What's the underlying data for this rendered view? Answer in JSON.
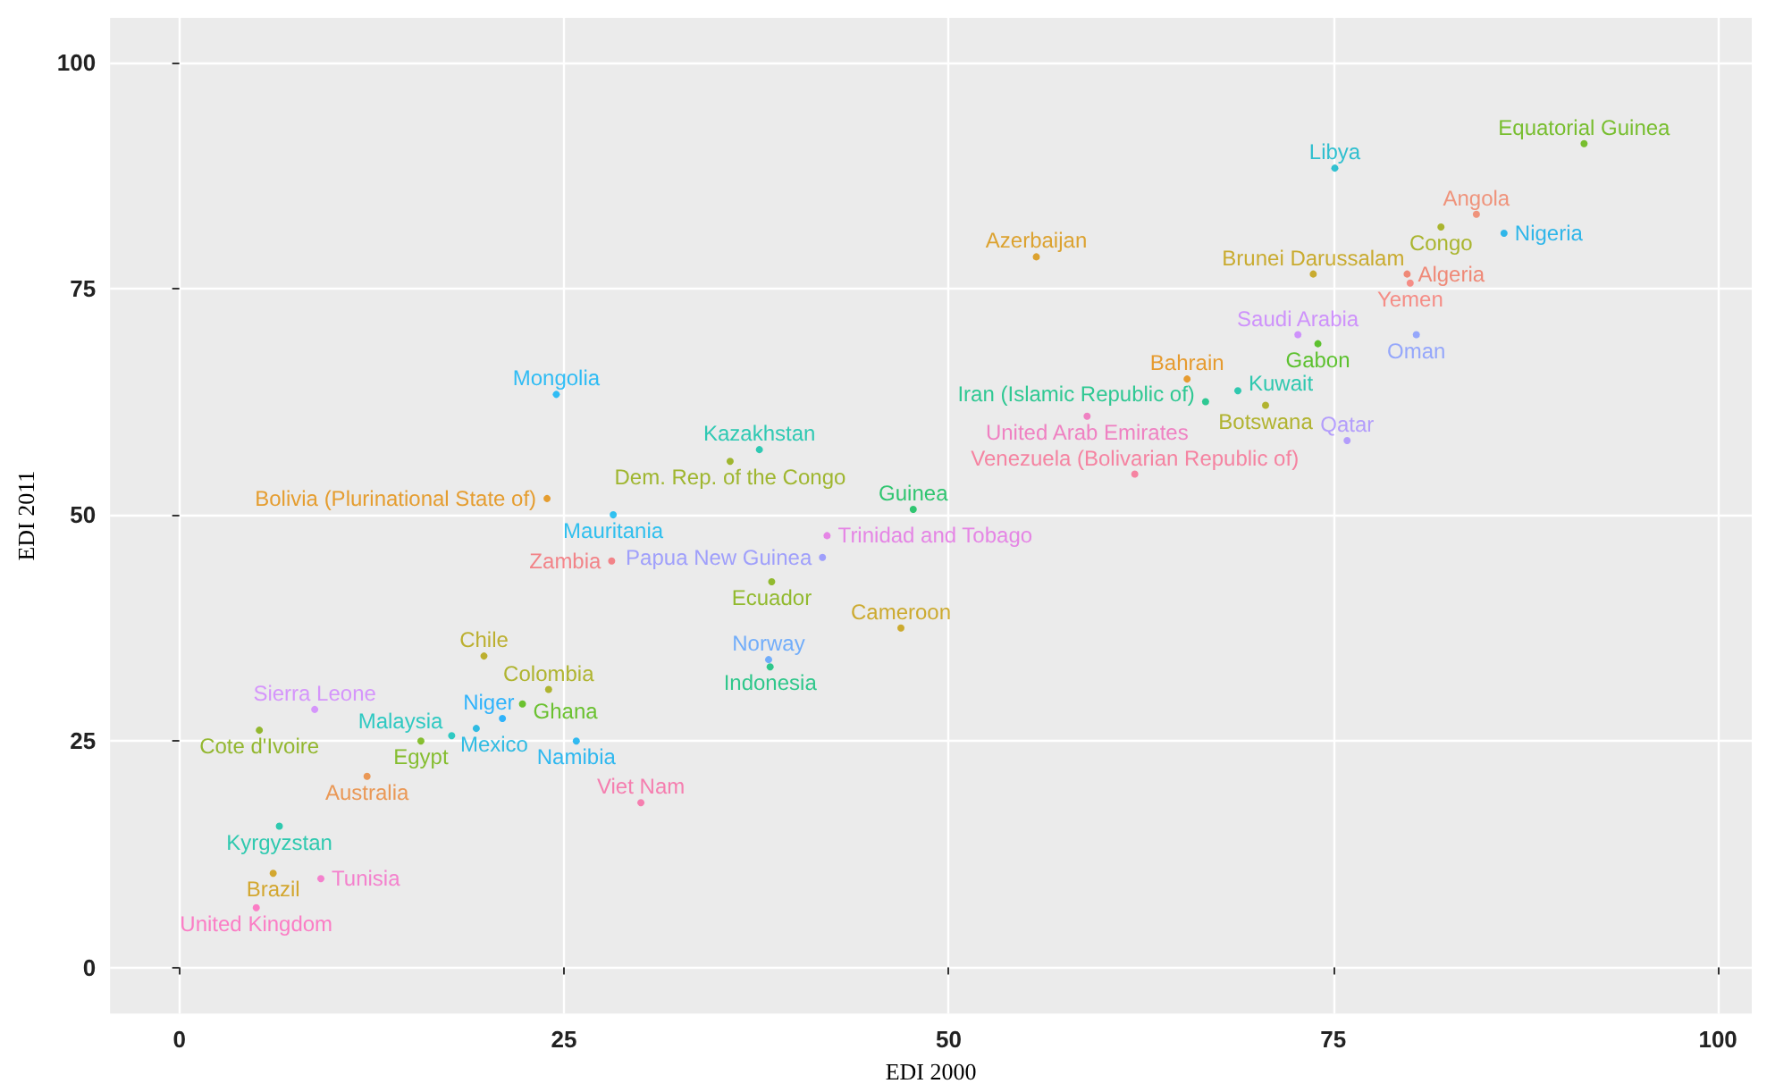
{
  "chart_data": {
    "type": "scatter",
    "xlabel": "EDI 2000",
    "ylabel": "EDI 2011",
    "xlim": [
      -4.5,
      102.2
    ],
    "ylim": [
      -5.1,
      104.9
    ],
    "xticks": [
      0,
      25,
      50,
      75,
      100
    ],
    "yticks": [
      0,
      25,
      50,
      75,
      100
    ],
    "grid": true,
    "legend": false,
    "marker": "circle",
    "series": [
      {
        "name": "Equatorial Guinea",
        "color": "#5bb300",
        "x": [
          91.3
        ],
        "values": [
          91.0
        ]
      },
      {
        "name": "Libya",
        "color": "#00b4c8",
        "x": [
          75.1
        ],
        "values": [
          88.3
        ]
      },
      {
        "name": "Angola",
        "color": "#f07d5f",
        "x": [
          84.3
        ],
        "values": [
          83.2
        ]
      },
      {
        "name": "Congo",
        "color": "#9aa800",
        "x": [
          82.0
        ],
        "values": [
          81.8
        ]
      },
      {
        "name": "Nigeria",
        "color": "#00a9e8",
        "x": [
          86.1
        ],
        "values": [
          81.1
        ]
      },
      {
        "name": "Azerbaijan",
        "color": "#d89000",
        "x": [
          55.7
        ],
        "values": [
          78.5
        ]
      },
      {
        "name": "Brunei Darussalam",
        "color": "#c09b00",
        "x": [
          73.7
        ],
        "values": [
          76.6
        ]
      },
      {
        "name": "Algeria",
        "color": "#f0705a",
        "x": [
          79.8
        ],
        "values": [
          76.6
        ]
      },
      {
        "name": "Yemen",
        "color": "#f8766d",
        "x": [
          80.0
        ],
        "values": [
          75.6
        ]
      },
      {
        "name": "Saudi Arabia",
        "color": "#c77cff",
        "x": [
          72.7
        ],
        "values": [
          69.9
        ]
      },
      {
        "name": "Gabon",
        "color": "#39b600",
        "x": [
          74.0
        ],
        "values": [
          68.9
        ]
      },
      {
        "name": "Oman",
        "color": "#7f96ff",
        "x": [
          80.4
        ],
        "values": [
          69.9
        ]
      },
      {
        "name": "Bahrain",
        "color": "#e58700",
        "x": [
          65.5
        ],
        "values": [
          65.0
        ]
      },
      {
        "name": "Kuwait",
        "color": "#00bfa0",
        "x": [
          68.8
        ],
        "values": [
          63.7
        ]
      },
      {
        "name": "Iran (Islamic Republic of)",
        "color": "#00bf7d",
        "x": [
          66.7
        ],
        "values": [
          62.5
        ]
      },
      {
        "name": "Botswana",
        "color": "#a3a500",
        "x": [
          70.6
        ],
        "values": [
          62.1
        ]
      },
      {
        "name": "United Arab Emirates",
        "color": "#f067b8",
        "x": [
          59.0
        ],
        "values": [
          60.9
        ]
      },
      {
        "name": "Qatar",
        "color": "#a58aff",
        "x": [
          75.9
        ],
        "values": [
          58.2
        ]
      },
      {
        "name": "Venezuela (Bolivarian Republic of)",
        "color": "#f8698f",
        "x": [
          62.1
        ],
        "values": [
          54.5
        ]
      },
      {
        "name": "Mongolia",
        "color": "#00b0f6",
        "x": [
          24.5
        ],
        "values": [
          63.3
        ]
      },
      {
        "name": "Kazakhstan",
        "color": "#00c0a5",
        "x": [
          37.7
        ],
        "values": [
          57.2
        ]
      },
      {
        "name": "Dem. Rep. of the Congo",
        "color": "#8ca900",
        "x": [
          35.8
        ],
        "values": [
          55.9
        ]
      },
      {
        "name": "Bolivia (Plurinational State of)",
        "color": "#e38900",
        "x": [
          23.9
        ],
        "values": [
          51.8
        ]
      },
      {
        "name": "Mauritania",
        "color": "#00b4ef",
        "x": [
          28.2
        ],
        "values": [
          50.0
        ]
      },
      {
        "name": "Guinea",
        "color": "#00bc51",
        "x": [
          47.7
        ],
        "values": [
          50.6
        ]
      },
      {
        "name": "Trinidad and Tobago",
        "color": "#e46ce4",
        "x": [
          42.1
        ],
        "values": [
          47.7
        ]
      },
      {
        "name": "Papua New Guinea",
        "color": "#8c8cff",
        "x": [
          41.8
        ],
        "values": [
          45.3
        ]
      },
      {
        "name": "Zambia",
        "color": "#f4696f",
        "x": [
          28.1
        ],
        "values": [
          44.9
        ]
      },
      {
        "name": "Ecuador",
        "color": "#7cae00",
        "x": [
          38.5
        ],
        "values": [
          42.6
        ]
      },
      {
        "name": "Cameroon",
        "color": "#c49a00",
        "x": [
          46.9
        ],
        "values": [
          37.5
        ]
      },
      {
        "name": "Norway",
        "color": "#529efe",
        "x": [
          38.3
        ],
        "values": [
          34.0
        ]
      },
      {
        "name": "Indonesia",
        "color": "#00be73",
        "x": [
          38.4
        ],
        "values": [
          33.2
        ]
      },
      {
        "name": "Chile",
        "color": "#b0a000",
        "x": [
          19.8
        ],
        "values": [
          34.4
        ]
      },
      {
        "name": "Colombia",
        "color": "#a0a600",
        "x": [
          24.0
        ],
        "values": [
          30.7
        ]
      },
      {
        "name": "Ghana",
        "color": "#4ab700",
        "x": [
          22.3
        ],
        "values": [
          29.1
        ]
      },
      {
        "name": "Niger",
        "color": "#00a5ff",
        "x": [
          21.0
        ],
        "values": [
          27.5
        ]
      },
      {
        "name": "Mexico",
        "color": "#00afe0",
        "x": [
          19.3
        ],
        "values": [
          26.4
        ]
      },
      {
        "name": "Malaysia",
        "color": "#00c0b8",
        "x": [
          17.7
        ],
        "values": [
          25.6
        ]
      },
      {
        "name": "Egypt",
        "color": "#6bb100",
        "x": [
          15.7
        ],
        "values": [
          25.0
        ]
      },
      {
        "name": "Namibia",
        "color": "#00abf0",
        "x": [
          25.8
        ],
        "values": [
          25.0
        ]
      },
      {
        "name": "Sierra Leone",
        "color": "#d080ff",
        "x": [
          8.8
        ],
        "values": [
          28.5
        ]
      },
      {
        "name": "Cote d'Ivoire",
        "color": "#7daa00",
        "x": [
          5.2
        ],
        "values": [
          26.2
        ]
      },
      {
        "name": "Australia",
        "color": "#ea8331",
        "x": [
          12.2
        ],
        "values": [
          21.1
        ]
      },
      {
        "name": "Viet Nam",
        "color": "#f763a0",
        "x": [
          30.0
        ],
        "values": [
          18.2
        ]
      },
      {
        "name": "Kyrgyzstan",
        "color": "#00c1a0",
        "x": [
          6.5
        ],
        "values": [
          15.6
        ]
      },
      {
        "name": "Brazil",
        "color": "#cd9600",
        "x": [
          6.1
        ],
        "values": [
          10.4
        ]
      },
      {
        "name": "Tunisia",
        "color": "#f666c6",
        "x": [
          9.2
        ],
        "values": [
          9.8
        ]
      },
      {
        "name": "United Kingdom",
        "color": "#ff62bc",
        "x": [
          5.0
        ],
        "values": [
          6.6
        ]
      }
    ]
  }
}
